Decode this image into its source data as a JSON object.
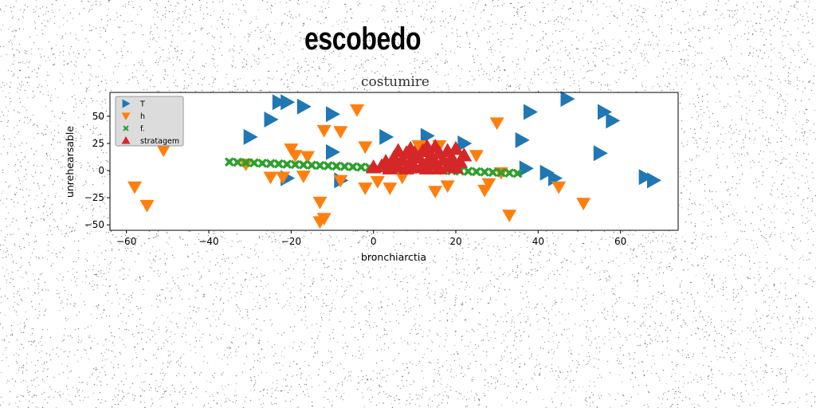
{
  "header": {
    "title": "escobedo"
  },
  "chart_data": {
    "type": "scatter",
    "title": "costumire",
    "xlabel": "bronchiarctia",
    "ylabel": "unrehearsable",
    "xlim": [
      -64,
      74
    ],
    "ylim": [
      -55,
      72
    ],
    "x_ticks": [
      -60,
      -40,
      -20,
      0,
      20,
      40,
      60
    ],
    "y_ticks": [
      -50,
      -25,
      0,
      25,
      50
    ],
    "grid": false,
    "legend_position": "upper-left",
    "series": [
      {
        "name": "T",
        "color": "#1f77b4",
        "marker": "triangle-right",
        "points": [
          [
            -30,
            31
          ],
          [
            -25,
            47
          ],
          [
            -23,
            63
          ],
          [
            -21,
            63
          ],
          [
            -17,
            59
          ],
          [
            -10,
            52
          ],
          [
            -10,
            17
          ],
          [
            -8,
            -9
          ],
          [
            -21,
            -7
          ],
          [
            3,
            31
          ],
          [
            13,
            32
          ],
          [
            22,
            25
          ],
          [
            36,
            28
          ],
          [
            38,
            54
          ],
          [
            42,
            -2
          ],
          [
            44,
            -7
          ],
          [
            47,
            66
          ],
          [
            56,
            54
          ],
          [
            58,
            46
          ],
          [
            55,
            16
          ],
          [
            66,
            -6
          ],
          [
            68,
            -9
          ],
          [
            37,
            2
          ]
        ]
      },
      {
        "name": "h",
        "color": "#ff7f0e",
        "marker": "triangle-down",
        "points": [
          [
            -58,
            -15
          ],
          [
            -55,
            -32
          ],
          [
            -51,
            19
          ],
          [
            -31,
            6
          ],
          [
            -25,
            -6
          ],
          [
            -22,
            -6
          ],
          [
            -20,
            20
          ],
          [
            -19,
            14
          ],
          [
            -17,
            -5
          ],
          [
            -16,
            13
          ],
          [
            -13,
            -29
          ],
          [
            -12,
            -44
          ],
          [
            -13,
            -47
          ],
          [
            -12,
            37
          ],
          [
            -8,
            36
          ],
          [
            -8,
            -9
          ],
          [
            -4,
            56
          ],
          [
            -2,
            -16
          ],
          [
            -2,
            22
          ],
          [
            1,
            -10
          ],
          [
            4,
            -16
          ],
          [
            7,
            -6
          ],
          [
            11,
            23
          ],
          [
            15,
            -19
          ],
          [
            16,
            23
          ],
          [
            18,
            -14
          ],
          [
            25,
            14
          ],
          [
            27,
            -18
          ],
          [
            28,
            -12
          ],
          [
            30,
            44
          ],
          [
            31,
            -2
          ],
          [
            33,
            -41
          ],
          [
            45,
            -15
          ],
          [
            51,
            -30
          ]
        ]
      },
      {
        "name": "f.",
        "color": "#2ca02c",
        "marker": "x-filled",
        "points": [
          [
            -35,
            8
          ],
          [
            -33,
            7.7
          ],
          [
            -31,
            7.4
          ],
          [
            -29,
            7.1
          ],
          [
            -27,
            6.8
          ],
          [
            -25,
            6.5
          ],
          [
            -23,
            6.2
          ],
          [
            -21,
            5.9
          ],
          [
            -19,
            5.6
          ],
          [
            -17,
            5.3
          ],
          [
            -15,
            5
          ],
          [
            -13,
            4.7
          ],
          [
            -11,
            4.4
          ],
          [
            -9,
            4.1
          ],
          [
            -7,
            3.8
          ],
          [
            -5,
            3.5
          ],
          [
            -3,
            3.2
          ],
          [
            -1,
            2.9
          ],
          [
            1,
            2.6
          ],
          [
            3,
            2.3
          ],
          [
            5,
            2
          ],
          [
            7,
            1.7
          ],
          [
            9,
            1.4
          ],
          [
            11,
            1.1
          ],
          [
            13,
            0.8
          ],
          [
            15,
            0.5
          ],
          [
            17,
            0.2
          ],
          [
            19,
            -0.1
          ],
          [
            21,
            -0.4
          ],
          [
            23,
            -0.7
          ],
          [
            25,
            -1
          ],
          [
            27,
            -1.3
          ],
          [
            29,
            -1.6
          ],
          [
            31,
            -1.9
          ],
          [
            33,
            -2.2
          ],
          [
            35,
            -2.5
          ]
        ]
      },
      {
        "name": "stratagem",
        "color": "#d62728",
        "marker": "triangle-up",
        "points": [
          [
            0,
            3
          ],
          [
            2,
            4
          ],
          [
            3,
            8
          ],
          [
            4,
            2
          ],
          [
            5,
            12
          ],
          [
            6,
            18
          ],
          [
            6,
            4
          ],
          [
            7,
            10
          ],
          [
            8,
            2
          ],
          [
            8,
            16
          ],
          [
            9,
            8
          ],
          [
            9,
            20
          ],
          [
            10,
            3
          ],
          [
            11,
            12
          ],
          [
            12,
            6
          ],
          [
            12,
            18
          ],
          [
            13,
            2
          ],
          [
            13,
            22
          ],
          [
            14,
            14
          ],
          [
            15,
            6
          ],
          [
            15,
            22
          ],
          [
            16,
            2
          ],
          [
            16,
            16
          ],
          [
            17,
            10
          ],
          [
            18,
            4
          ],
          [
            18,
            18
          ],
          [
            19,
            12
          ],
          [
            20,
            3
          ],
          [
            20,
            20
          ],
          [
            21,
            8
          ],
          [
            22,
            14
          ],
          [
            14,
            9
          ],
          [
            10,
            16
          ],
          [
            5,
            7
          ],
          [
            3,
            5
          ],
          [
            19,
            6
          ]
        ]
      }
    ]
  }
}
